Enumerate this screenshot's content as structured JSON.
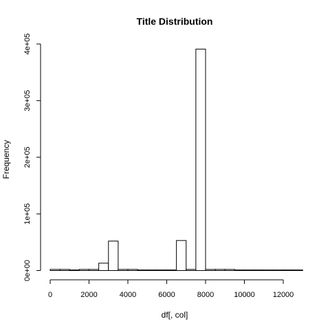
{
  "chart_data": {
    "type": "bar",
    "title": "Title  Distribution",
    "xlabel": "df[, col]",
    "ylabel": "Frequency",
    "xlim": [
      0,
      13000
    ],
    "ylim": [
      0,
      400000
    ],
    "x_ticks": [
      0,
      2000,
      4000,
      6000,
      8000,
      10000,
      12000
    ],
    "x_tick_labels": [
      "0",
      "2000",
      "4000",
      "6000",
      "8000",
      "10000",
      "12000"
    ],
    "y_ticks": [
      0,
      100000,
      200000,
      300000,
      400000
    ],
    "y_tick_labels": [
      "0e+00",
      "1e+05",
      "2e+05",
      "3e+05",
      "4e+05"
    ],
    "bin_width": 500,
    "bins": [
      {
        "start": 0,
        "end": 500,
        "count": 2000
      },
      {
        "start": 500,
        "end": 1000,
        "count": 2000
      },
      {
        "start": 1000,
        "end": 1500,
        "count": 1000
      },
      {
        "start": 1500,
        "end": 2000,
        "count": 2000
      },
      {
        "start": 2000,
        "end": 2500,
        "count": 2000
      },
      {
        "start": 2500,
        "end": 3000,
        "count": 13000
      },
      {
        "start": 3000,
        "end": 3500,
        "count": 52000
      },
      {
        "start": 3500,
        "end": 4000,
        "count": 2000
      },
      {
        "start": 4000,
        "end": 4500,
        "count": 2000
      },
      {
        "start": 4500,
        "end": 5000,
        "count": 1000
      },
      {
        "start": 5000,
        "end": 5500,
        "count": 1000
      },
      {
        "start": 5500,
        "end": 6000,
        "count": 1000
      },
      {
        "start": 6000,
        "end": 6500,
        "count": 1000
      },
      {
        "start": 6500,
        "end": 7000,
        "count": 53000
      },
      {
        "start": 7000,
        "end": 7500,
        "count": 2000
      },
      {
        "start": 7500,
        "end": 8000,
        "count": 391000
      },
      {
        "start": 8000,
        "end": 8500,
        "count": 2000
      },
      {
        "start": 8500,
        "end": 9000,
        "count": 2000
      },
      {
        "start": 9000,
        "end": 9500,
        "count": 2000
      },
      {
        "start": 9500,
        "end": 10000,
        "count": 1000
      },
      {
        "start": 10000,
        "end": 10500,
        "count": 1000
      },
      {
        "start": 10500,
        "end": 11000,
        "count": 1000
      },
      {
        "start": 11000,
        "end": 11500,
        "count": 0
      },
      {
        "start": 11500,
        "end": 12000,
        "count": 0
      },
      {
        "start": 12000,
        "end": 12500,
        "count": 1000
      },
      {
        "start": 12500,
        "end": 13000,
        "count": 0
      }
    ],
    "grid": false,
    "legend": "none"
  }
}
